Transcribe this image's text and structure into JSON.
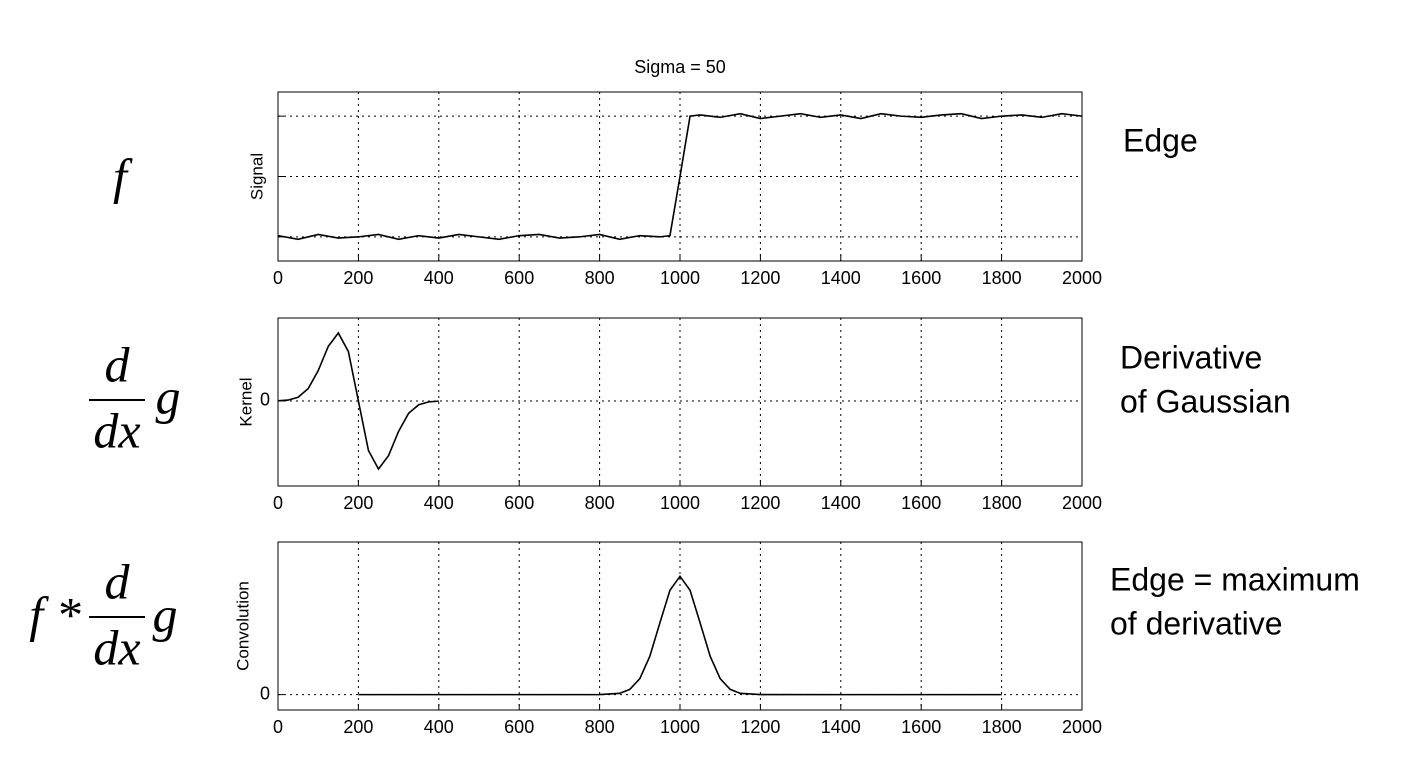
{
  "chart_data": [
    {
      "type": "line",
      "title": "Sigma = 50",
      "ylabel": "Signal",
      "left_label": {
        "prefix": "f"
      },
      "description": [
        "Edge"
      ],
      "x": [
        0,
        50,
        100,
        150,
        200,
        250,
        300,
        350,
        400,
        450,
        500,
        550,
        600,
        650,
        700,
        750,
        800,
        850,
        900,
        950,
        975,
        1000,
        1025,
        1050,
        1100,
        1150,
        1200,
        1250,
        1300,
        1350,
        1400,
        1450,
        1500,
        1550,
        1600,
        1650,
        1700,
        1750,
        1800,
        1850,
        1900,
        1950,
        2000
      ],
      "values": [
        0.01,
        -0.02,
        0.02,
        -0.01,
        0.0,
        0.02,
        -0.02,
        0.01,
        -0.01,
        0.02,
        0.0,
        -0.02,
        0.01,
        0.02,
        -0.01,
        0.0,
        0.02,
        -0.02,
        0.01,
        0.0,
        0.01,
        0.5,
        1.0,
        1.01,
        0.99,
        1.02,
        0.98,
        1.0,
        1.02,
        0.99,
        1.01,
        0.98,
        1.02,
        1.0,
        0.99,
        1.01,
        1.02,
        0.98,
        1.0,
        1.01,
        0.99,
        1.02,
        1.0
      ],
      "color": "#000000",
      "xlim": [
        0,
        2000
      ],
      "xticks": [
        0,
        200,
        400,
        600,
        800,
        1000,
        1200,
        1400,
        1600,
        1800,
        2000
      ],
      "ylim": [
        -0.2,
        1.2
      ],
      "yticks": [
        0,
        0.5,
        1
      ],
      "show_ytick_labels": false,
      "grid": true
    },
    {
      "type": "line",
      "ylabel": "Kernel",
      "left_label": {
        "numerator": "d",
        "denominator": "dx",
        "suffix": "g"
      },
      "description": [
        "Derivative",
        "of Gaussian"
      ],
      "x": [
        0,
        25,
        50,
        75,
        100,
        125,
        150,
        175,
        200,
        225,
        250,
        275,
        300,
        325,
        350,
        375,
        400
      ],
      "values": [
        0.002,
        0.013,
        0.055,
        0.181,
        0.446,
        0.803,
        1.0,
        0.728,
        0,
        -0.728,
        -1.0,
        -0.803,
        -0.446,
        -0.181,
        -0.055,
        -0.013,
        -0.002
      ],
      "color": "#000000",
      "xlim": [
        0,
        2000
      ],
      "xticks": [
        0,
        200,
        400,
        600,
        800,
        1000,
        1200,
        1400,
        1600,
        1800,
        2000
      ],
      "ylim": [
        -1.25,
        1.22
      ],
      "yticks": [
        0
      ],
      "show_ytick_labels": true,
      "grid": true
    },
    {
      "type": "line",
      "ylabel": "Convolution",
      "left_label": {
        "prefix": "f *",
        "numerator": "d",
        "denominator": "dx",
        "suffix": "g"
      },
      "description": [
        "Edge = maximum",
        "of derivative"
      ],
      "x": [
        200,
        400,
        600,
        800,
        850,
        875,
        900,
        925,
        950,
        975,
        1000,
        1025,
        1050,
        1075,
        1100,
        1125,
        1150,
        1200,
        1400,
        1600,
        1800
      ],
      "values": [
        0,
        0,
        0,
        0.0003,
        0.011,
        0.044,
        0.135,
        0.325,
        0.607,
        0.882,
        1,
        0.882,
        0.607,
        0.325,
        0.135,
        0.044,
        0.011,
        0.0003,
        0,
        0,
        0
      ],
      "color": "#000000",
      "xlim": [
        0,
        2000
      ],
      "xticks": [
        0,
        200,
        400,
        600,
        800,
        1000,
        1200,
        1400,
        1600,
        1800,
        2000
      ],
      "ylim": [
        -0.13,
        1.29
      ],
      "yticks": [
        0
      ],
      "show_ytick_labels": true,
      "grid": true
    }
  ]
}
